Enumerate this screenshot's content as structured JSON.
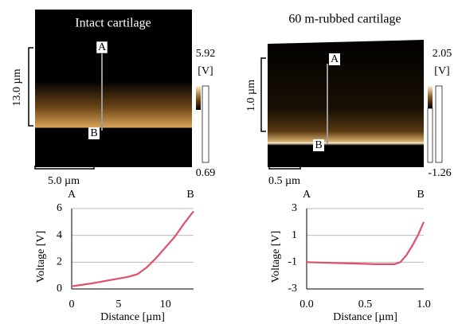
{
  "panels": [
    {
      "title": "Intact cartilage",
      "vertical_scale": "13.0 µm",
      "horizontal_scale": "5.0 µm",
      "colorbar_max": 5.92,
      "colorbar_unit": "[V]",
      "colorbar_min": 0.69,
      "point_a": "A",
      "point_b": "B"
    },
    {
      "title": "60 m-rubbed cartilage",
      "vertical_scale": "1.0 µm",
      "horizontal_scale": "0.5 µm",
      "colorbar_max": 2.05,
      "colorbar_unit": "[V]",
      "colorbar_min": -1.26,
      "point_a": "A",
      "point_b": "B"
    }
  ],
  "chart_data": [
    {
      "type": "line",
      "x_label": "Distance [µm]",
      "y_label": "Voltage [V]",
      "start_label": "A",
      "end_label": "B",
      "xlim": [
        0,
        13
      ],
      "xticks": [
        0,
        5,
        10
      ],
      "ylim": [
        0,
        6
      ],
      "yticks": [
        0,
        2,
        4,
        6
      ],
      "grid": true,
      "x": [
        0,
        2,
        4,
        6,
        7,
        8,
        9,
        10,
        11,
        12,
        13
      ],
      "series": [
        {
          "color": "#e0506a",
          "values": [
            0.2,
            0.4,
            0.65,
            0.9,
            1.1,
            1.6,
            2.3,
            3.1,
            3.9,
            4.9,
            5.8
          ]
        }
      ]
    },
    {
      "type": "line",
      "x_label": "Distance [µm]",
      "y_label": "Voltage [V]",
      "start_label": "A",
      "end_label": "B",
      "xlim": [
        0,
        1
      ],
      "xticks": [
        {
          "value": 0,
          "label": "0.0"
        },
        {
          "value": 0.5,
          "label": "0.5"
        },
        {
          "value": 1,
          "label": "1.0"
        }
      ],
      "ylim": [
        -3,
        3
      ],
      "yticks": [
        3,
        1,
        -1,
        -3
      ],
      "grid": true,
      "x": [
        0,
        0.2,
        0.4,
        0.6,
        0.75,
        0.8,
        0.85,
        0.9,
        0.95,
        1.0
      ],
      "series": [
        {
          "color": "#e0506a",
          "values": [
            -1.0,
            -1.05,
            -1.1,
            -1.15,
            -1.15,
            -1.0,
            -0.5,
            0.2,
            1.0,
            2.0
          ]
        }
      ]
    }
  ]
}
